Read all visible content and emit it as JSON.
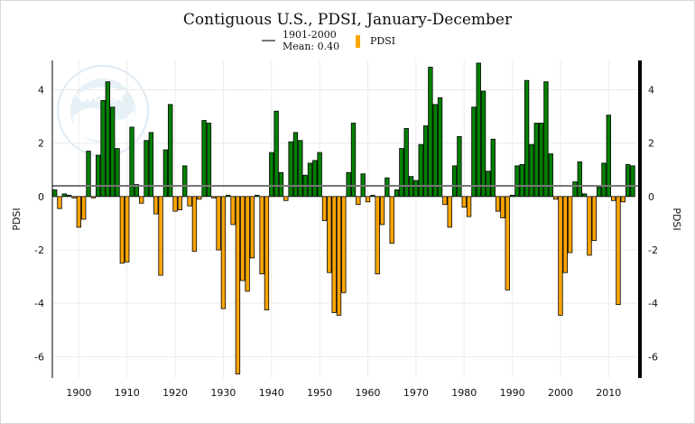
{
  "chart_data": {
    "type": "bar",
    "title": "Contiguous U.S., PDSI, January-December",
    "ylabel_left": "PDSI",
    "ylabel_right": "PDSI",
    "xlabel": "",
    "xlim": [
      1895,
      2016
    ],
    "ylim": [
      -6.8,
      5.1
    ],
    "xticks": [
      1900,
      1910,
      1920,
      1930,
      1940,
      1950,
      1960,
      1970,
      1980,
      1990,
      2000,
      2010
    ],
    "yticks": [
      -6,
      -4,
      -2,
      0,
      2,
      4
    ],
    "grid": true,
    "legend_position": "top-center",
    "legend": {
      "line_label_1": "1901-2000",
      "line_label_2": "Mean: 0.40",
      "bar_label": "PDSI"
    },
    "reference_line": {
      "name": "1901-2000 Mean",
      "value": 0.4,
      "color": "#777777"
    },
    "colors": {
      "positive": "#008000",
      "negative": "#FFA500",
      "outline": "#000000"
    },
    "watermark": "NOAA",
    "series": [
      {
        "name": "PDSI",
        "x": [
          1895,
          1896,
          1897,
          1898,
          1899,
          1900,
          1901,
          1902,
          1903,
          1904,
          1905,
          1906,
          1907,
          1908,
          1909,
          1910,
          1911,
          1912,
          1913,
          1914,
          1915,
          1916,
          1917,
          1918,
          1919,
          1920,
          1921,
          1922,
          1923,
          1924,
          1925,
          1926,
          1927,
          1928,
          1929,
          1930,
          1931,
          1932,
          1933,
          1934,
          1935,
          1936,
          1937,
          1938,
          1939,
          1940,
          1941,
          1942,
          1943,
          1944,
          1945,
          1946,
          1947,
          1948,
          1949,
          1950,
          1951,
          1952,
          1953,
          1954,
          1955,
          1956,
          1957,
          1958,
          1959,
          1960,
          1961,
          1962,
          1963,
          1964,
          1965,
          1966,
          1967,
          1968,
          1969,
          1970,
          1971,
          1972,
          1973,
          1974,
          1975,
          1976,
          1977,
          1978,
          1979,
          1980,
          1981,
          1982,
          1983,
          1984,
          1985,
          1986,
          1987,
          1988,
          1989,
          1990,
          1991,
          1992,
          1993,
          1994,
          1995,
          1996,
          1997,
          1998,
          1999,
          2000,
          2001,
          2002,
          2003,
          2004,
          2005,
          2006,
          2007,
          2008,
          2009,
          2010,
          2011,
          2012,
          2013,
          2014,
          2015
        ],
        "values": [
          0.25,
          -0.45,
          0.1,
          0.05,
          -0.05,
          -1.15,
          -0.85,
          1.7,
          -0.05,
          1.55,
          3.6,
          4.3,
          3.35,
          1.8,
          -2.5,
          -2.45,
          2.6,
          0.45,
          -0.25,
          2.1,
          2.4,
          -0.65,
          -2.95,
          1.75,
          3.45,
          -0.55,
          -0.5,
          1.15,
          -0.35,
          -2.05,
          -0.1,
          2.85,
          2.75,
          -0.05,
          -2.0,
          -4.2,
          0.05,
          -1.05,
          -6.65,
          -3.15,
          -3.55,
          -2.3,
          0.05,
          -2.9,
          -4.25,
          1.65,
          3.2,
          0.9,
          -0.15,
          2.05,
          2.4,
          2.1,
          0.8,
          1.25,
          1.35,
          1.65,
          -0.9,
          -2.85,
          -4.35,
          -4.45,
          -3.6,
          0.9,
          2.75,
          -0.3,
          0.85,
          -0.2,
          0.05,
          -2.9,
          -1.05,
          0.7,
          -1.75,
          0.25,
          1.8,
          2.55,
          0.75,
          0.6,
          1.95,
          2.65,
          4.85,
          3.45,
          3.7,
          -0.3,
          -1.15,
          1.15,
          2.25,
          -0.4,
          -0.75,
          3.35,
          5.0,
          3.95,
          0.95,
          2.15,
          -0.55,
          -0.8,
          -3.5,
          0.05,
          1.15,
          1.2,
          4.35,
          1.95,
          2.75,
          2.75,
          4.3,
          1.6,
          -0.1,
          -4.45,
          -2.85,
          -2.1,
          0.55,
          1.3,
          0.1,
          -2.2,
          -1.65,
          0.35,
          1.25,
          3.05,
          -0.15,
          -4.05,
          -0.2,
          1.2,
          1.15
        ]
      }
    ]
  }
}
